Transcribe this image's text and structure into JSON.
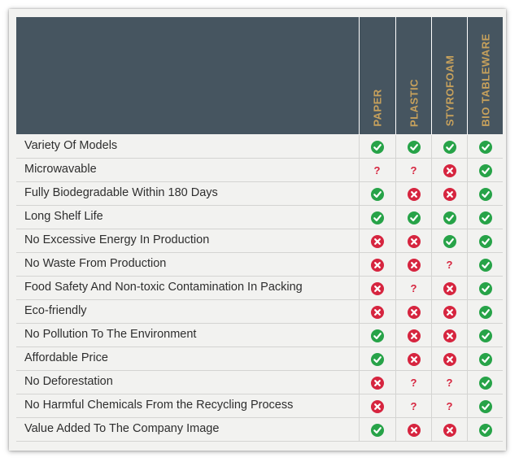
{
  "columns": [
    "PAPER",
    "PLASTIC",
    "STYROFOAM",
    "BIO TABLEWARE"
  ],
  "colors": {
    "yes": "#27a348",
    "no": "#d6253f",
    "unknown": "#d6253f",
    "header_bg": "#465560",
    "header_text": "#c7a15c"
  },
  "rows": [
    {
      "label": "Variety Of Models",
      "values": [
        "yes",
        "yes",
        "yes",
        "yes"
      ]
    },
    {
      "label": "Microwavable",
      "values": [
        "unknown",
        "unknown",
        "no",
        "yes"
      ]
    },
    {
      "label": "Fully Biodegradable Within 180 Days",
      "values": [
        "yes",
        "no",
        "no",
        "yes"
      ]
    },
    {
      "label": "Long Shelf Life",
      "values": [
        "yes",
        "yes",
        "yes",
        "yes"
      ]
    },
    {
      "label": "No Excessive Energy In Production",
      "values": [
        "no",
        "no",
        "yes",
        "yes"
      ]
    },
    {
      "label": "No Waste From Production",
      "values": [
        "no",
        "no",
        "unknown",
        "yes"
      ]
    },
    {
      "label": "Food Safety And Non-toxic Contamination In Packing",
      "values": [
        "no",
        "unknown",
        "no",
        "yes"
      ]
    },
    {
      "label": "Eco-friendly",
      "values": [
        "no",
        "no",
        "no",
        "yes"
      ]
    },
    {
      "label": "No Pollution To The Environment",
      "values": [
        "yes",
        "no",
        "no",
        "yes"
      ]
    },
    {
      "label": "Affordable Price",
      "values": [
        "yes",
        "no",
        "no",
        "yes"
      ]
    },
    {
      "label": "No Deforestation",
      "values": [
        "no",
        "unknown",
        "unknown",
        "yes"
      ]
    },
    {
      "label": "No Harmful Chemicals From the Recycling Process",
      "values": [
        "no",
        "unknown",
        "unknown",
        "yes"
      ]
    },
    {
      "label": "Value Added To The Company Image",
      "values": [
        "yes",
        "no",
        "no",
        "yes"
      ]
    }
  ],
  "symbols": {
    "unknown": "?"
  }
}
